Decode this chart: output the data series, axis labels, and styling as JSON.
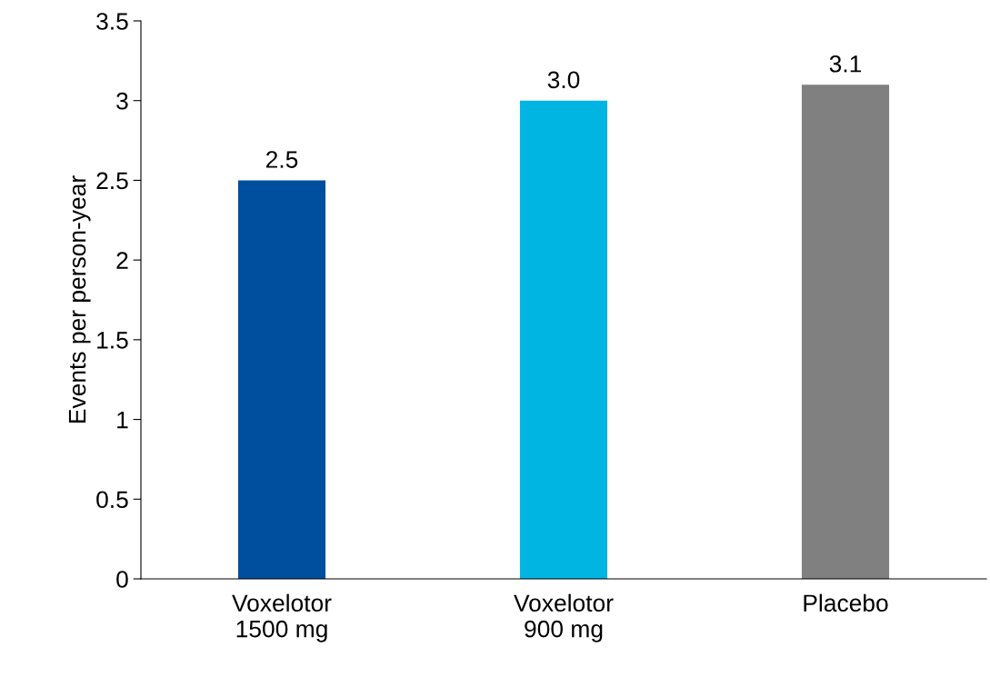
{
  "chart_data": {
    "type": "bar",
    "ylabel": "Events per person-year",
    "categories": [
      "Voxelotor\n1500 mg",
      "Voxelotor\n900 mg",
      "Placebo"
    ],
    "values": [
      2.5,
      3.0,
      3.1
    ],
    "colors": [
      "#004f9e",
      "#00b5e2",
      "#808080"
    ],
    "value_labels": [
      "2.5",
      "3.0",
      "3.1"
    ],
    "ylim": [
      0,
      3.5
    ],
    "yticks": [
      0,
      0.5,
      1,
      1.5,
      2,
      2.5,
      3,
      3.5
    ],
    "grid": false,
    "legend": false
  }
}
